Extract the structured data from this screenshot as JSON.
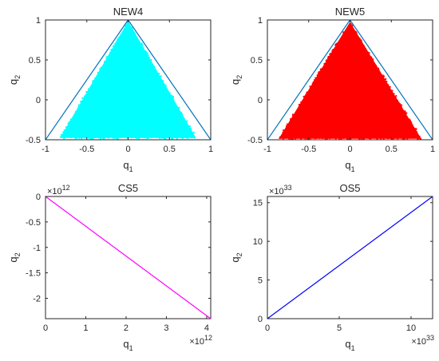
{
  "chart_data": [
    {
      "type": "scatter",
      "title": "NEW4",
      "xlabel": "q",
      "xlabel_sub": "1",
      "ylabel": "q",
      "ylabel_sub": "2",
      "xlim": [
        -1,
        1
      ],
      "ylim": [
        -0.5,
        1
      ],
      "xticks": [
        "-1",
        "-0.5",
        "0",
        "0.5",
        "1"
      ],
      "yticks": [
        "-0.5",
        "0",
        "0.5",
        "1"
      ],
      "exponent_x": "",
      "exponent_y": "",
      "boundary": {
        "name": "",
        "color": "#0072BD",
        "points": [
          [
            -1,
            -0.5
          ],
          [
            0,
            1
          ],
          [
            1,
            -0.5
          ]
        ]
      },
      "region": {
        "color": "#00FFFF",
        "points": [
          [
            -0.81,
            -0.47
          ],
          [
            0,
            0.97
          ],
          [
            0.81,
            -0.47
          ]
        ]
      }
    },
    {
      "type": "scatter",
      "title": "NEW5",
      "xlabel": "q",
      "xlabel_sub": "1",
      "ylabel": "q",
      "ylabel_sub": "2",
      "xlim": [
        -1,
        1
      ],
      "ylim": [
        -0.5,
        1
      ],
      "xticks": [
        "-1",
        "-0.5",
        "0",
        "0.5",
        "1"
      ],
      "yticks": [
        "-0.5",
        "0",
        "0.5",
        "1"
      ],
      "exponent_x": "",
      "exponent_y": "",
      "boundary": {
        "name": "",
        "color": "#0072BD",
        "points": [
          [
            -1,
            -0.5
          ],
          [
            0,
            1
          ],
          [
            1,
            -0.5
          ]
        ]
      },
      "region": {
        "color": "#FF0000",
        "points": [
          [
            -0.85,
            -0.48
          ],
          [
            0,
            0.96
          ],
          [
            0.85,
            -0.48
          ]
        ]
      }
    },
    {
      "type": "line",
      "title": "CS5",
      "xlabel": "q",
      "xlabel_sub": "1",
      "ylabel": "q",
      "ylabel_sub": "2",
      "xlim": [
        0,
        4.1
      ],
      "ylim": [
        -2.4,
        0
      ],
      "xticks": [
        "0",
        "1",
        "2",
        "3",
        "4"
      ],
      "yticks": [
        "-2",
        "-1.5",
        "-1",
        "-0.5",
        "0"
      ],
      "exponent_x": "12",
      "exponent_y": "12",
      "series": [
        {
          "name": "",
          "color": "#FF00FF",
          "x": [
            0,
            4.1
          ],
          "y": [
            0,
            -2.4
          ]
        }
      ]
    },
    {
      "type": "line",
      "title": "OS5",
      "xlabel": "q",
      "xlabel_sub": "1",
      "ylabel": "q",
      "ylabel_sub": "2",
      "xlim": [
        0,
        11.5
      ],
      "ylim": [
        0,
        15.8
      ],
      "xticks": [
        "0",
        "5",
        "10"
      ],
      "yticks": [
        "0",
        "5",
        "10",
        "15"
      ],
      "exponent_x": "33",
      "exponent_y": "33",
      "series": [
        {
          "name": "",
          "color": "#0000FF",
          "x": [
            0,
            11.5
          ],
          "y": [
            0,
            15.8
          ]
        }
      ]
    }
  ]
}
